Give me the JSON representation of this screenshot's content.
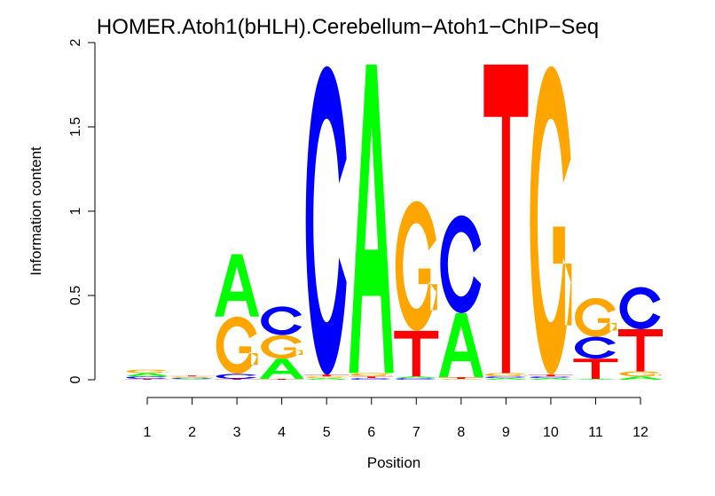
{
  "chart_data": {
    "type": "sequence-logo",
    "title": "HOMER.Atoh1(bHLH).Cerebellum−Atoh1−ChIP−Seq",
    "xlabel": "Position",
    "ylabel": "Information content",
    "ylim": [
      0,
      2
    ],
    "yticks": [
      "0",
      "0.5",
      "1",
      "1.5",
      "2"
    ],
    "ytick_values": [
      0,
      0.5,
      1,
      1.5,
      2
    ],
    "positions": [
      "1",
      "2",
      "3",
      "4",
      "5",
      "6",
      "7",
      "8",
      "9",
      "10",
      "11",
      "12"
    ],
    "colors": {
      "A": "#00ff00",
      "C": "#0000ff",
      "G": "#ffa500",
      "T": "#ff0000"
    },
    "stacks": [
      [
        {
          "base": "T",
          "bits": 0.005
        },
        {
          "base": "C",
          "bits": 0.015
        },
        {
          "base": "A",
          "bits": 0.02
        },
        {
          "base": "G",
          "bits": 0.02
        }
      ],
      [
        {
          "base": "A",
          "bits": 0.005
        },
        {
          "base": "C",
          "bits": 0.007
        },
        {
          "base": "G",
          "bits": 0.008
        },
        {
          "base": "T",
          "bits": 0.005
        }
      ],
      [
        {
          "base": "T",
          "bits": 0.005
        },
        {
          "base": "C",
          "bits": 0.03
        },
        {
          "base": "G",
          "bits": 0.34
        },
        {
          "base": "A",
          "bits": 0.37
        }
      ],
      [
        {
          "base": "T",
          "bits": 0.005
        },
        {
          "base": "A",
          "bits": 0.12
        },
        {
          "base": "G",
          "bits": 0.14
        },
        {
          "base": "C",
          "bits": 0.17
        }
      ],
      [
        {
          "base": "A",
          "bits": 0.01
        },
        {
          "base": "G",
          "bits": 0.01
        },
        {
          "base": "T",
          "bits": 0.01
        },
        {
          "base": "C",
          "bits": 1.83
        }
      ],
      [
        {
          "base": "C",
          "bits": 0.01
        },
        {
          "base": "T",
          "bits": 0.01
        },
        {
          "base": "G",
          "bits": 0.02
        },
        {
          "base": "A",
          "bits": 1.83
        }
      ],
      [
        {
          "base": "C",
          "bits": 0.01
        },
        {
          "base": "A",
          "bits": 0.01
        },
        {
          "base": "T",
          "bits": 0.27
        },
        {
          "base": "G",
          "bits": 0.77
        }
      ],
      [
        {
          "base": "G",
          "bits": 0.005
        },
        {
          "base": "T",
          "bits": 0.01
        },
        {
          "base": "A",
          "bits": 0.38
        },
        {
          "base": "C",
          "bits": 0.58
        }
      ],
      [
        {
          "base": "A",
          "bits": 0.01
        },
        {
          "base": "C",
          "bits": 0.01
        },
        {
          "base": "G",
          "bits": 0.02
        },
        {
          "base": "T",
          "bits": 1.83
        }
      ],
      [
        {
          "base": "A",
          "bits": 0.01
        },
        {
          "base": "C",
          "bits": 0.01
        },
        {
          "base": "T",
          "bits": 0.01
        },
        {
          "base": "G",
          "bits": 1.83
        }
      ],
      [
        {
          "base": "A",
          "bits": 0.005
        },
        {
          "base": "T",
          "bits": 0.12
        },
        {
          "base": "C",
          "bits": 0.13
        },
        {
          "base": "G",
          "bits": 0.23
        }
      ],
      [
        {
          "base": "A",
          "bits": 0.02
        },
        {
          "base": "G",
          "bits": 0.03
        },
        {
          "base": "T",
          "bits": 0.25
        },
        {
          "base": "C",
          "bits": 0.25
        }
      ]
    ]
  }
}
